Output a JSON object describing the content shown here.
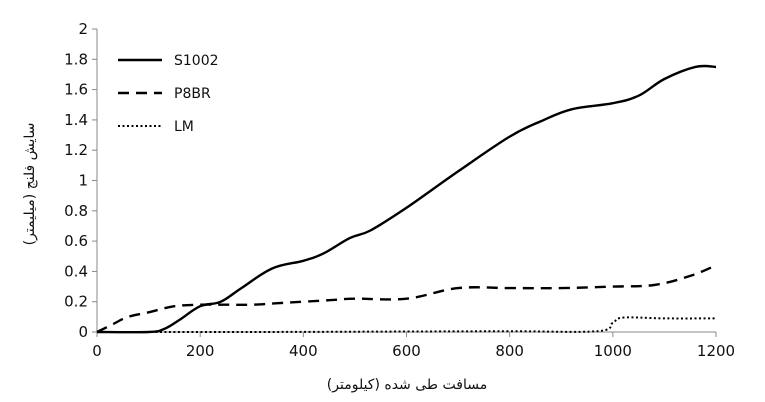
{
  "chart_data": {
    "type": "line",
    "title": "",
    "xlabel": "مسافت طی شده (کیلومتر)",
    "ylabel": "سایش فلنج (میلیمتر)",
    "xlim": [
      0,
      1200
    ],
    "ylim": [
      0,
      2
    ],
    "x_ticks": [
      "0",
      "200",
      "400",
      "600",
      "800",
      "1000",
      "1200"
    ],
    "y_ticks": [
      "0",
      "0.2",
      "0.4",
      "0.6",
      "0.8",
      "1",
      "1.2",
      "1.4",
      "1.6",
      "1.8",
      "2"
    ],
    "grid": false,
    "legend_position": "top-left",
    "series": [
      {
        "name": "S1002",
        "style": "solid",
        "color": "#000000",
        "x": [
          0,
          100,
          130,
          160,
          200,
          240,
          280,
          340,
          400,
          440,
          490,
          530,
          600,
          700,
          800,
          860,
          920,
          1000,
          1050,
          1100,
          1160,
          1200
        ],
        "y": [
          0,
          0,
          0.02,
          0.08,
          0.17,
          0.2,
          0.29,
          0.42,
          0.47,
          0.52,
          0.62,
          0.67,
          0.82,
          1.06,
          1.29,
          1.39,
          1.47,
          1.51,
          1.56,
          1.67,
          1.75,
          1.75
        ]
      },
      {
        "name": "P8BR",
        "style": "dashed",
        "color": "#000000",
        "x": [
          0,
          30,
          60,
          100,
          150,
          200,
          250,
          300,
          350,
          450,
          500,
          600,
          700,
          800,
          900,
          1000,
          1080,
          1150,
          1200
        ],
        "y": [
          0,
          0.05,
          0.1,
          0.13,
          0.17,
          0.18,
          0.18,
          0.18,
          0.19,
          0.21,
          0.22,
          0.22,
          0.29,
          0.29,
          0.29,
          0.3,
          0.31,
          0.37,
          0.44
        ]
      },
      {
        "name": "LM",
        "style": "dotted",
        "color": "#000000",
        "x": [
          0,
          300,
          600,
          800,
          970,
          1000,
          1020,
          1100,
          1200
        ],
        "y": [
          0,
          0,
          0.003,
          0.005,
          0.005,
          0.06,
          0.095,
          0.09,
          0.09
        ]
      }
    ]
  }
}
